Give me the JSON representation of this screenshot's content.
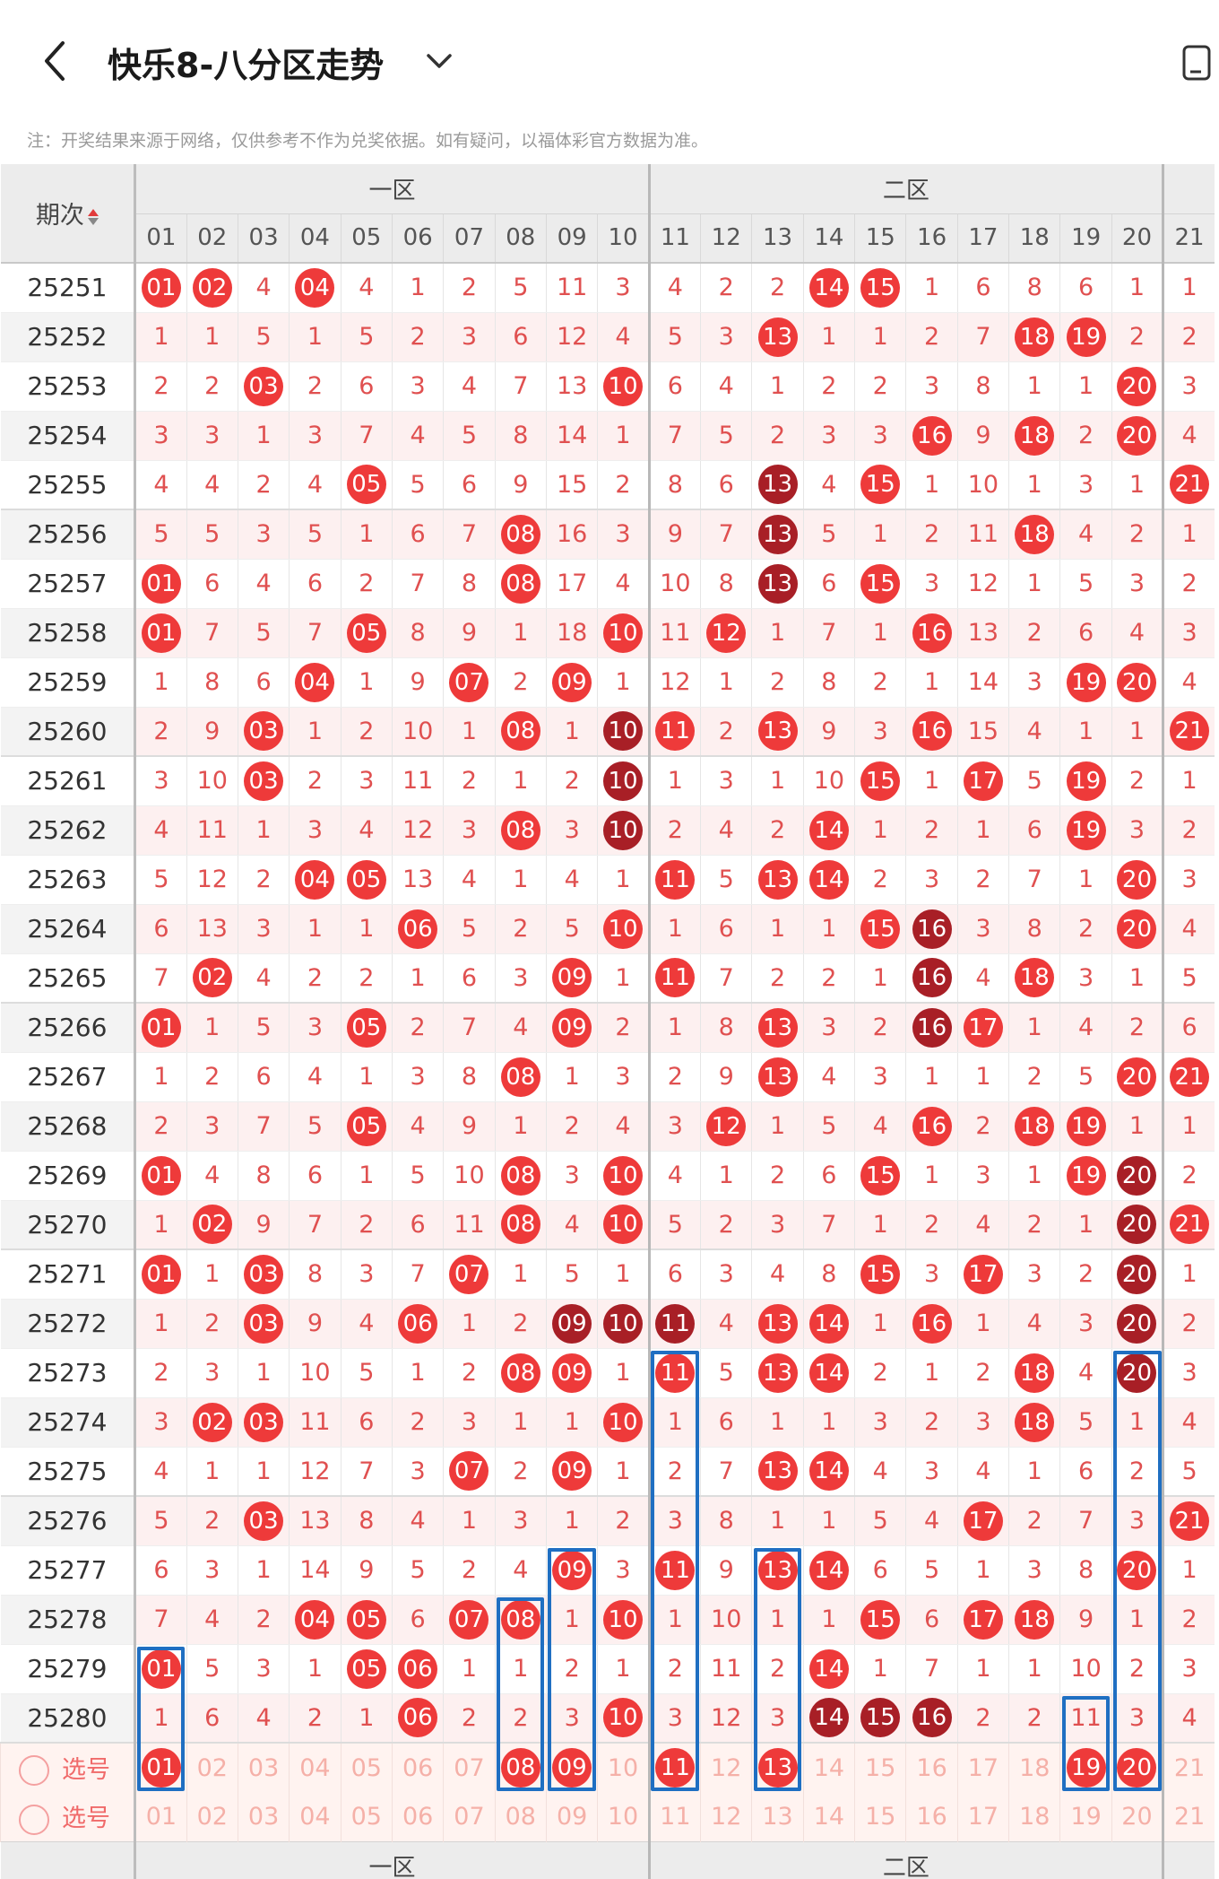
{
  "header": {
    "title": "快乐8-八分区走势",
    "back_icon": "chevron-left-icon",
    "dropdown_icon": "chevron-down-icon",
    "device_icon": "device-icon",
    "note": "注：开奖结果来源于网络，仅供参考不作为兑奖依据。如有疑问，以福体彩官方数据为准。"
  },
  "table": {
    "period_label": "期次",
    "zone1_label": "一区",
    "zone2_label": "二区",
    "number_headers": [
      "01",
      "02",
      "03",
      "04",
      "05",
      "06",
      "07",
      "08",
      "09",
      "10",
      "11",
      "12",
      "13",
      "14",
      "15",
      "16",
      "17",
      "18",
      "19",
      "20",
      "21"
    ],
    "pick_label": "选号",
    "rows": [
      {
        "period": "25251",
        "cells": [
          "B01",
          "B02",
          "4",
          "B04",
          "4",
          "1",
          "2",
          "5",
          "11",
          "3",
          "4",
          "2",
          "2",
          "B14",
          "B15",
          "1",
          "6",
          "8",
          "6",
          "1",
          "1"
        ]
      },
      {
        "period": "25252",
        "cells": [
          "1",
          "1",
          "5",
          "1",
          "5",
          "2",
          "3",
          "6",
          "12",
          "4",
          "5",
          "3",
          "B13",
          "1",
          "1",
          "2",
          "7",
          "B18",
          "B19",
          "2",
          "2"
        ]
      },
      {
        "period": "25253",
        "cells": [
          "2",
          "2",
          "B03",
          "2",
          "6",
          "3",
          "4",
          "7",
          "13",
          "B10",
          "6",
          "4",
          "1",
          "2",
          "2",
          "3",
          "8",
          "1",
          "1",
          "B20",
          "3"
        ]
      },
      {
        "period": "25254",
        "cells": [
          "3",
          "3",
          "1",
          "3",
          "7",
          "4",
          "5",
          "8",
          "14",
          "1",
          "7",
          "5",
          "2",
          "3",
          "3",
          "B16",
          "9",
          "B18",
          "2",
          "B20",
          "4"
        ]
      },
      {
        "period": "25255",
        "cells": [
          "4",
          "4",
          "2",
          "4",
          "B05",
          "5",
          "6",
          "9",
          "15",
          "2",
          "8",
          "6",
          "D13",
          "4",
          "B15",
          "1",
          "10",
          "1",
          "3",
          "1",
          "B21"
        ]
      },
      {
        "period": "25256",
        "cells": [
          "5",
          "5",
          "3",
          "5",
          "1",
          "6",
          "7",
          "B08",
          "16",
          "3",
          "9",
          "7",
          "D13",
          "5",
          "1",
          "2",
          "11",
          "B18",
          "4",
          "2",
          "1"
        ]
      },
      {
        "period": "25257",
        "cells": [
          "B01",
          "6",
          "4",
          "6",
          "2",
          "7",
          "8",
          "B08",
          "17",
          "4",
          "10",
          "8",
          "D13",
          "6",
          "B15",
          "3",
          "12",
          "1",
          "5",
          "3",
          "2"
        ]
      },
      {
        "period": "25258",
        "cells": [
          "B01",
          "7",
          "5",
          "7",
          "B05",
          "8",
          "9",
          "1",
          "18",
          "B10",
          "11",
          "B12",
          "1",
          "7",
          "1",
          "B16",
          "13",
          "2",
          "6",
          "4",
          "3"
        ]
      },
      {
        "period": "25259",
        "cells": [
          "1",
          "8",
          "6",
          "B04",
          "1",
          "9",
          "B07",
          "2",
          "B09",
          "1",
          "12",
          "1",
          "2",
          "8",
          "2",
          "1",
          "14",
          "3",
          "B19",
          "B20",
          "4"
        ]
      },
      {
        "period": "25260",
        "cells": [
          "2",
          "9",
          "B03",
          "1",
          "2",
          "10",
          "1",
          "B08",
          "1",
          "D10",
          "B11",
          "2",
          "B13",
          "9",
          "3",
          "B16",
          "15",
          "4",
          "1",
          "1",
          "B21"
        ]
      },
      {
        "period": "25261",
        "cells": [
          "3",
          "10",
          "B03",
          "2",
          "3",
          "11",
          "2",
          "1",
          "2",
          "D10",
          "1",
          "3",
          "1",
          "10",
          "B15",
          "1",
          "B17",
          "5",
          "B19",
          "2",
          "1"
        ]
      },
      {
        "period": "25262",
        "cells": [
          "4",
          "11",
          "1",
          "3",
          "4",
          "12",
          "3",
          "B08",
          "3",
          "D10",
          "2",
          "4",
          "2",
          "B14",
          "1",
          "2",
          "1",
          "6",
          "B19",
          "3",
          "2"
        ]
      },
      {
        "period": "25263",
        "cells": [
          "5",
          "12",
          "2",
          "B04",
          "B05",
          "13",
          "4",
          "1",
          "4",
          "1",
          "B11",
          "5",
          "B13",
          "B14",
          "2",
          "3",
          "2",
          "7",
          "1",
          "B20",
          "3"
        ]
      },
      {
        "period": "25264",
        "cells": [
          "6",
          "13",
          "3",
          "1",
          "1",
          "B06",
          "5",
          "2",
          "5",
          "B10",
          "1",
          "6",
          "1",
          "1",
          "B15",
          "D16",
          "3",
          "8",
          "2",
          "B20",
          "4"
        ]
      },
      {
        "period": "25265",
        "cells": [
          "7",
          "B02",
          "4",
          "2",
          "2",
          "1",
          "6",
          "3",
          "B09",
          "1",
          "B11",
          "7",
          "2",
          "2",
          "1",
          "D16",
          "4",
          "B18",
          "3",
          "1",
          "5"
        ]
      },
      {
        "period": "25266",
        "cells": [
          "B01",
          "1",
          "5",
          "3",
          "B05",
          "2",
          "7",
          "4",
          "B09",
          "2",
          "1",
          "8",
          "B13",
          "3",
          "2",
          "D16",
          "B17",
          "1",
          "4",
          "2",
          "6"
        ]
      },
      {
        "period": "25267",
        "cells": [
          "1",
          "2",
          "6",
          "4",
          "1",
          "3",
          "8",
          "B08",
          "1",
          "3",
          "2",
          "9",
          "B13",
          "4",
          "3",
          "1",
          "1",
          "2",
          "5",
          "B20",
          "B21"
        ]
      },
      {
        "period": "25268",
        "cells": [
          "2",
          "3",
          "7",
          "5",
          "B05",
          "4",
          "9",
          "1",
          "2",
          "4",
          "3",
          "B12",
          "1",
          "5",
          "4",
          "B16",
          "2",
          "B18",
          "B19",
          "1",
          "1"
        ]
      },
      {
        "period": "25269",
        "cells": [
          "B01",
          "4",
          "8",
          "6",
          "1",
          "5",
          "10",
          "B08",
          "3",
          "B10",
          "4",
          "1",
          "2",
          "6",
          "B15",
          "1",
          "3",
          "1",
          "B19",
          "D20",
          "2"
        ]
      },
      {
        "period": "25270",
        "cells": [
          "1",
          "B02",
          "9",
          "7",
          "2",
          "6",
          "11",
          "B08",
          "4",
          "B10",
          "5",
          "2",
          "3",
          "7",
          "1",
          "2",
          "4",
          "2",
          "1",
          "D20",
          "B21"
        ]
      },
      {
        "period": "25271",
        "cells": [
          "B01",
          "1",
          "B03",
          "8",
          "3",
          "7",
          "B07",
          "1",
          "5",
          "1",
          "6",
          "3",
          "4",
          "8",
          "B15",
          "3",
          "B17",
          "3",
          "2",
          "D20",
          "1"
        ]
      },
      {
        "period": "25272",
        "cells": [
          "1",
          "2",
          "B03",
          "9",
          "4",
          "B06",
          "1",
          "2",
          "D09",
          "D10",
          "D11",
          "4",
          "B13",
          "B14",
          "1",
          "B16",
          "1",
          "4",
          "3",
          "D20",
          "2"
        ]
      },
      {
        "period": "25273",
        "cells": [
          "2",
          "3",
          "1",
          "10",
          "5",
          "1",
          "2",
          "B08",
          "B09",
          "1",
          "B11",
          "5",
          "B13",
          "B14",
          "2",
          "1",
          "2",
          "B18",
          "4",
          "D20",
          "3"
        ]
      },
      {
        "period": "25274",
        "cells": [
          "3",
          "B02",
          "B03",
          "11",
          "6",
          "2",
          "3",
          "1",
          "1",
          "B10",
          "1",
          "6",
          "1",
          "1",
          "3",
          "2",
          "3",
          "B18",
          "5",
          "1",
          "4"
        ]
      },
      {
        "period": "25275",
        "cells": [
          "4",
          "1",
          "1",
          "12",
          "7",
          "3",
          "B07",
          "2",
          "B09",
          "1",
          "2",
          "7",
          "B13",
          "B14",
          "4",
          "3",
          "4",
          "1",
          "6",
          "2",
          "5"
        ]
      },
      {
        "period": "25276",
        "cells": [
          "5",
          "2",
          "B03",
          "13",
          "8",
          "4",
          "1",
          "3",
          "1",
          "2",
          "3",
          "8",
          "1",
          "1",
          "5",
          "4",
          "B17",
          "2",
          "7",
          "3",
          "B21"
        ]
      },
      {
        "period": "25277",
        "cells": [
          "6",
          "3",
          "1",
          "14",
          "9",
          "5",
          "2",
          "4",
          "B09",
          "3",
          "B11",
          "9",
          "B13",
          "B14",
          "6",
          "5",
          "1",
          "3",
          "8",
          "B20",
          "1"
        ]
      },
      {
        "period": "25278",
        "cells": [
          "7",
          "4",
          "2",
          "B04",
          "B05",
          "6",
          "B07",
          "B08",
          "1",
          "B10",
          "1",
          "10",
          "1",
          "1",
          "B15",
          "6",
          "B17",
          "B18",
          "9",
          "1",
          "2"
        ]
      },
      {
        "period": "25279",
        "cells": [
          "B01",
          "5",
          "3",
          "1",
          "B05",
          "B06",
          "1",
          "1",
          "2",
          "1",
          "2",
          "11",
          "2",
          "B14",
          "1",
          "7",
          "1",
          "1",
          "10",
          "2",
          "3"
        ]
      },
      {
        "period": "25280",
        "cells": [
          "1",
          "6",
          "4",
          "2",
          "1",
          "B06",
          "2",
          "2",
          "3",
          "B10",
          "3",
          "12",
          "3",
          "D14",
          "D15",
          "D16",
          "2",
          "2",
          "11",
          "3",
          "4"
        ]
      }
    ],
    "pick_rows": [
      {
        "label": "选号",
        "cells": [
          "B01",
          "02",
          "03",
          "04",
          "05",
          "06",
          "07",
          "B08",
          "B09",
          "10",
          "B11",
          "12",
          "B13",
          "14",
          "15",
          "16",
          "17",
          "18",
          "B19",
          "B20",
          "21"
        ]
      },
      {
        "label": "选号",
        "cells": [
          "01",
          "02",
          "03",
          "04",
          "05",
          "06",
          "07",
          "08",
          "09",
          "10",
          "11",
          "12",
          "13",
          "14",
          "15",
          "16",
          "17",
          "18",
          "19",
          "20",
          "21"
        ]
      }
    ]
  }
}
